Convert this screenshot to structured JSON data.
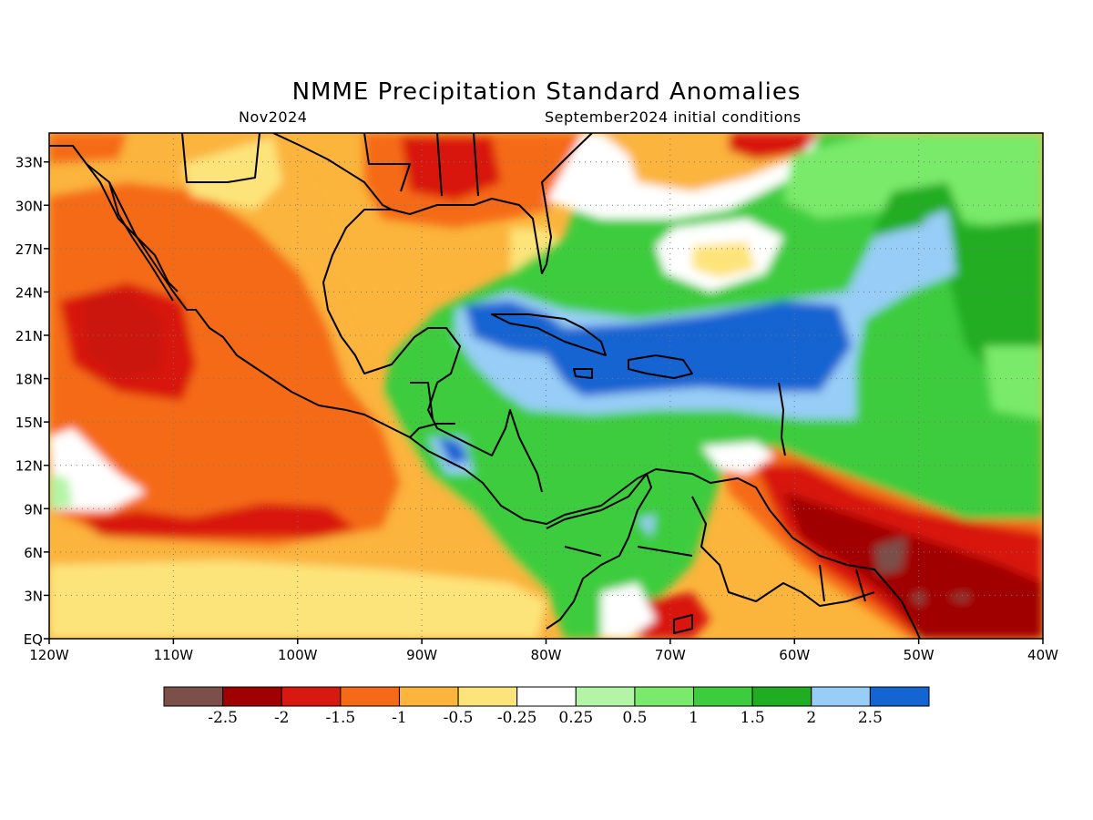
{
  "title": "NMME Precipitation Standard Anomalies",
  "valid_month": "Nov2024",
  "initial_conditions": "September2024 initial conditions",
  "axes": {
    "lat_labels": [
      "33N",
      "30N",
      "27N",
      "24N",
      "21N",
      "18N",
      "15N",
      "12N",
      "9N",
      "6N",
      "3N",
      "EQ"
    ],
    "lon_labels": [
      "120W",
      "110W",
      "100W",
      "90W",
      "80W",
      "70W",
      "60W",
      "50W",
      "40W"
    ],
    "lat_range": [
      0,
      35
    ],
    "lon_range": [
      -120,
      -40
    ],
    "grid": "dotted"
  },
  "colorbar": {
    "tick_labels": [
      "-2.5",
      "-2",
      "-1.5",
      "-1",
      "-0.5",
      "-0.25",
      "0.25",
      "0.5",
      "1",
      "1.5",
      "2",
      "2.5"
    ],
    "colors": [
      "#7a5048",
      "#a10000",
      "#d8190f",
      "#f56a17",
      "#fbb43c",
      "#fde47a",
      "#ffffff",
      "#b4f4a6",
      "#79ea6b",
      "#3dcc3e",
      "#20ad22",
      "#97cdf6",
      "#1464d2"
    ]
  }
}
